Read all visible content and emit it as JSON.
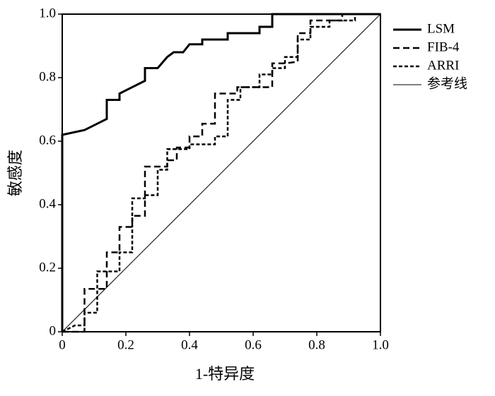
{
  "chart_data": {
    "type": "line",
    "xlabel": "1-特异度",
    "ylabel": "敏感度",
    "xlim": [
      0,
      1
    ],
    "ylim": [
      0,
      1
    ],
    "xticks": [
      0,
      0.2,
      0.4,
      0.6,
      0.8,
      {
        "value": 1,
        "label": "1.0"
      }
    ],
    "yticks": [
      0,
      0.2,
      0.4,
      0.6,
      0.8,
      {
        "value": 1,
        "label": "1.0"
      }
    ],
    "legend": "right",
    "series": [
      {
        "name": "LSM",
        "color": "#000000",
        "line_style": "solid",
        "line_width": 3,
        "x": [
          0,
          0,
          0.07,
          0.14,
          0.14,
          0.18,
          0.18,
          0.26,
          0.26,
          0.3,
          0.33,
          0.35,
          0.38,
          0.4,
          0.44,
          0.44,
          0.52,
          0.52,
          0.62,
          0.62,
          0.66,
          0.66,
          1
        ],
        "y": [
          0,
          0.62,
          0.635,
          0.67,
          0.73,
          0.73,
          0.75,
          0.79,
          0.83,
          0.83,
          0.865,
          0.88,
          0.88,
          0.905,
          0.905,
          0.92,
          0.92,
          0.94,
          0.94,
          0.96,
          0.96,
          1,
          1
        ]
      },
      {
        "name": "FIB-4",
        "color": "#000000",
        "line_style": "dashed",
        "line_width": 2.5,
        "x": [
          0,
          0.07,
          0.07,
          0.14,
          0.14,
          0.18,
          0.18,
          0.22,
          0.22,
          0.26,
          0.26,
          0.33,
          0.33,
          0.36,
          0.36,
          0.4,
          0.4,
          0.44,
          0.44,
          0.48,
          0.48,
          0.55,
          0.55,
          0.66,
          0.66,
          0.7,
          0.74,
          0.74,
          0.78,
          0.78,
          0.88,
          0.88,
          1
        ],
        "y": [
          0,
          0,
          0.135,
          0.135,
          0.25,
          0.25,
          0.33,
          0.33,
          0.365,
          0.365,
          0.52,
          0.52,
          0.54,
          0.54,
          0.58,
          0.58,
          0.615,
          0.615,
          0.655,
          0.655,
          0.75,
          0.75,
          0.77,
          0.77,
          0.845,
          0.845,
          0.85,
          0.94,
          0.94,
          0.98,
          0.98,
          1,
          1
        ]
      },
      {
        "name": "ARRI",
        "color": "#000000",
        "line_style": "dotted",
        "line_width": 2.5,
        "x": [
          0,
          0.04,
          0.07,
          0.07,
          0.11,
          0.11,
          0.18,
          0.18,
          0.22,
          0.22,
          0.26,
          0.26,
          0.3,
          0.3,
          0.33,
          0.33,
          0.4,
          0.4,
          0.48,
          0.48,
          0.52,
          0.52,
          0.56,
          0.56,
          0.62,
          0.62,
          0.66,
          0.66,
          0.7,
          0.7,
          0.74,
          0.74,
          0.78,
          0.78,
          0.84,
          0.84,
          0.92,
          0.92,
          1
        ],
        "y": [
          0,
          0.02,
          0.02,
          0.06,
          0.06,
          0.19,
          0.19,
          0.25,
          0.25,
          0.42,
          0.42,
          0.43,
          0.43,
          0.51,
          0.51,
          0.575,
          0.575,
          0.59,
          0.59,
          0.615,
          0.615,
          0.73,
          0.73,
          0.77,
          0.77,
          0.81,
          0.81,
          0.83,
          0.83,
          0.865,
          0.865,
          0.92,
          0.92,
          0.96,
          0.96,
          0.98,
          0.98,
          1,
          1
        ]
      },
      {
        "name": "参考线",
        "color": "#000000",
        "line_style": "solid",
        "line_width": 1,
        "x": [
          0,
          1
        ],
        "y": [
          0,
          1
        ]
      }
    ]
  }
}
